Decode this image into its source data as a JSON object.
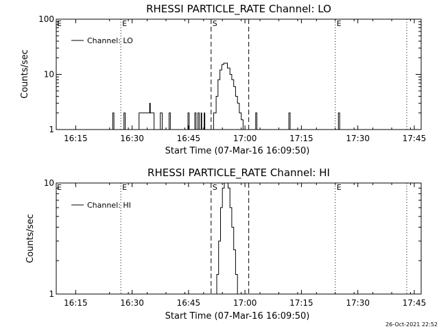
{
  "timestamp": "26-Oct-2021 22:52",
  "chart_data": [
    {
      "type": "line",
      "title": "RHESSI PARTICLE_RATE Channel: LO",
      "xlabel": "Start Time (07-Mar-16 16:09:50)",
      "ylabel": "Counts/sec",
      "yscale": "log",
      "ylim": [
        1,
        100
      ],
      "xlim_minutes_after_1609_50": [
        0,
        97
      ],
      "x_ticks": [
        "16:15",
        "16:30",
        "16:45",
        "17:00",
        "17:15",
        "17:30",
        "17:45"
      ],
      "y_ticks": [
        "1",
        "10",
        "100"
      ],
      "legend": {
        "label": "Channel: LO",
        "placement": "top-left"
      },
      "markers": [
        {
          "type": "E",
          "time": "16:27",
          "style": "dotted"
        },
        {
          "type": "S",
          "time": "16:51",
          "style": "dashed"
        },
        {
          "type": "",
          "time": "17:01",
          "style": "dashed"
        },
        {
          "type": "E",
          "time": "17:24",
          "style": "dotted"
        },
        {
          "type": "",
          "time": "17:43",
          "style": "dotted"
        }
      ],
      "series": [
        {
          "x": [
            "16:09:50",
            "16:24:30",
            "16:24:50",
            "16:25:10",
            "16:27:30",
            "16:27:50",
            "16:28:10",
            "16:31:30",
            "16:31:50",
            "16:32:20",
            "16:34:20",
            "16:34:40",
            "16:34:50",
            "16:35:20",
            "16:35:40",
            "16:35:50",
            "16:37:10",
            "16:37:30",
            "16:38:00",
            "16:39:30",
            "16:39:50",
            "16:40:10",
            "16:44:30",
            "16:44:50",
            "16:45:10",
            "16:46:20",
            "16:46:40",
            "16:47:00",
            "16:47:10",
            "16:47:30",
            "16:47:50",
            "16:48:00",
            "16:48:20",
            "16:48:30",
            "16:48:50",
            "16:49:10",
            "16:49:20",
            "16:49:40",
            "16:50:00",
            "16:51:00",
            "16:51:40",
            "16:52:20",
            "16:52:50",
            "16:53:20",
            "16:53:50",
            "16:54:20",
            "16:54:50",
            "16:55:20",
            "16:56:00",
            "16:56:30",
            "16:57:00",
            "16:57:30",
            "16:58:00",
            "16:58:30",
            "16:59:00",
            "16:59:30",
            "17:00:00",
            "17:00:20",
            "17:00:40",
            "17:02:30",
            "17:02:50",
            "17:03:10",
            "17:11:20",
            "17:11:40",
            "17:12:00",
            "17:24:30",
            "17:24:50",
            "17:25:10",
            "17:46:50"
          ],
          "values": [
            1,
            1,
            2,
            1,
            1,
            2,
            1,
            1,
            2,
            2,
            2,
            3,
            2,
            2,
            2,
            1,
            1,
            2,
            1,
            1,
            2,
            1,
            1,
            2,
            1,
            1,
            2,
            1,
            1,
            2,
            1,
            1,
            2,
            1,
            1,
            2,
            1,
            1,
            1,
            1,
            2,
            4,
            8,
            12,
            15,
            16,
            16,
            13,
            10,
            8,
            6,
            4,
            3,
            2,
            1.5,
            1,
            1,
            1,
            1,
            1,
            2,
            1,
            1,
            2,
            1,
            1,
            2,
            1,
            1
          ]
        }
      ]
    },
    {
      "type": "line",
      "title": "RHESSI PARTICLE_RATE Channel: HI",
      "xlabel": "Start Time (07-Mar-16 16:09:50)",
      "ylabel": "Counts/sec",
      "yscale": "log",
      "ylim": [
        1,
        10
      ],
      "xlim_minutes_after_1609_50": [
        0,
        97
      ],
      "x_ticks": [
        "16:15",
        "16:30",
        "16:45",
        "17:00",
        "17:15",
        "17:30",
        "17:45"
      ],
      "y_ticks": [
        "1",
        "10"
      ],
      "legend": {
        "label": "Channel: HI",
        "placement": "top-left"
      },
      "markers": [
        {
          "type": "E",
          "time": "16:27",
          "style": "dotted"
        },
        {
          "type": "S",
          "time": "16:51",
          "style": "dashed"
        },
        {
          "type": "",
          "time": "17:01",
          "style": "dashed"
        },
        {
          "type": "E",
          "time": "17:24",
          "style": "dotted"
        },
        {
          "type": "",
          "time": "17:43",
          "style": "dotted"
        }
      ],
      "series": [
        {
          "x": [
            "16:09:50",
            "16:52:00",
            "16:52:30",
            "16:53:00",
            "16:53:30",
            "16:54:00",
            "16:54:30",
            "16:55:00",
            "16:55:30",
            "16:56:00",
            "16:56:30",
            "16:57:00",
            "16:57:30",
            "16:58:00",
            "16:58:30",
            "16:59:00",
            "17:46:50"
          ],
          "values": [
            1,
            1,
            1.5,
            3,
            6,
            9,
            10,
            10,
            9,
            6,
            4,
            2.5,
            1.5,
            1,
            1,
            1,
            1
          ]
        }
      ]
    }
  ]
}
